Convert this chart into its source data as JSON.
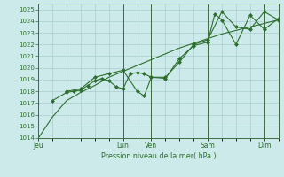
{
  "bg_color": "#cceaea",
  "grid_color": "#aacccc",
  "line_color": "#2d6e2d",
  "marker_color": "#2d6e2d",
  "xlabel": "Pression niveau de la mer( hPa )",
  "ylim": [
    1014,
    1025.5
  ],
  "yticks": [
    1014,
    1015,
    1016,
    1017,
    1018,
    1019,
    1020,
    1021,
    1022,
    1023,
    1024,
    1025
  ],
  "day_labels": [
    "Jeu",
    "Lun",
    "Ven",
    "Sam",
    "Dim"
  ],
  "day_positions": [
    0.0,
    3.0,
    4.0,
    6.0,
    8.0
  ],
  "xlim": [
    0.0,
    8.5
  ],
  "series1": {
    "x": [
      0.0,
      0.5,
      1.0,
      1.5,
      2.0,
      2.5,
      3.0,
      3.5,
      4.0,
      4.5,
      5.0,
      5.5,
      6.0,
      6.5,
      7.0,
      7.5,
      8.0,
      8.5
    ],
    "y": [
      1014.0,
      1015.8,
      1017.2,
      1017.9,
      1018.5,
      1019.2,
      1019.7,
      1020.2,
      1020.7,
      1021.2,
      1021.7,
      1022.1,
      1022.5,
      1022.9,
      1023.2,
      1023.5,
      1023.8,
      1024.1
    ],
    "has_markers": false
  },
  "series2": {
    "x": [
      0.5,
      1.0,
      1.25,
      1.5,
      1.75,
      2.0,
      2.25,
      2.5,
      2.75,
      3.0,
      3.25,
      3.5,
      3.75,
      4.0,
      4.5,
      5.0,
      5.5,
      6.0,
      6.25,
      6.5,
      7.0,
      7.5,
      8.0,
      8.5
    ],
    "y": [
      1017.2,
      1017.9,
      1018.0,
      1018.1,
      1018.5,
      1018.9,
      1019.1,
      1018.9,
      1018.4,
      1018.2,
      1019.5,
      1019.6,
      1019.5,
      1019.2,
      1019.1,
      1020.8,
      1021.9,
      1022.2,
      1024.6,
      1024.1,
      1022.0,
      1024.5,
      1023.3,
      1024.2
    ],
    "has_markers": true
  },
  "series3": {
    "x": [
      1.0,
      1.5,
      2.0,
      2.5,
      3.0,
      3.5,
      3.75,
      4.0,
      4.5,
      5.0,
      5.5,
      6.0,
      6.5,
      7.0,
      7.5,
      8.0,
      8.5
    ],
    "y": [
      1018.0,
      1018.2,
      1019.2,
      1019.5,
      1019.8,
      1018.0,
      1017.6,
      1019.2,
      1019.2,
      1020.5,
      1022.0,
      1022.4,
      1024.8,
      1023.5,
      1023.3,
      1024.8,
      1024.1
    ],
    "has_markers": true
  }
}
